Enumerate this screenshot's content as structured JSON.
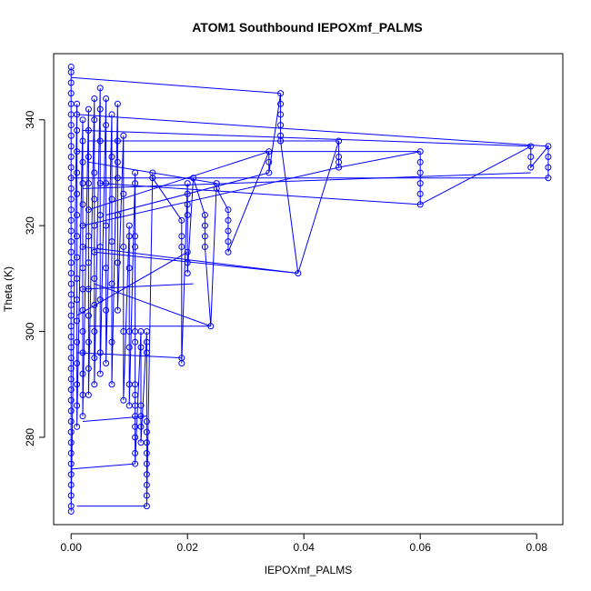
{
  "chart_data": {
    "type": "scatter",
    "title": "ATOM1 Southbound IEPOXmf_PALMS",
    "xlabel": "IEPOXmf_PALMS",
    "ylabel": "Theta (K)",
    "xlim": [
      -0.003,
      0.0845
    ],
    "ylim": [
      263.5,
      352.5
    ],
    "x_ticks": [
      0.0,
      0.02,
      0.04,
      0.06,
      0.08
    ],
    "x_tick_labels": [
      "0.00",
      "0.02",
      "0.04",
      "0.06",
      "0.08"
    ],
    "y_ticks": [
      280,
      300,
      320,
      340
    ],
    "y_tick_labels": [
      "280",
      "300",
      "320",
      "340"
    ],
    "marker": "open-circle",
    "series_color": "#0000ff",
    "grid": false,
    "legend": "none",
    "connected_in_order": true,
    "series": [
      {
        "points": [
          [
            0.0,
            350
          ],
          [
            0.0,
            349
          ],
          [
            0.0,
            347
          ],
          [
            0.0,
            345
          ],
          [
            0.0,
            343
          ],
          [
            0.0,
            341
          ],
          [
            0.0,
            339
          ],
          [
            0.0,
            337
          ],
          [
            0.0,
            335
          ],
          [
            0.0,
            333
          ],
          [
            0.0,
            331
          ],
          [
            0.0,
            329
          ],
          [
            0.0,
            327
          ],
          [
            0.0,
            325
          ],
          [
            0.0,
            323
          ],
          [
            0.0,
            321
          ],
          [
            0.0,
            319
          ],
          [
            0.0,
            317
          ],
          [
            0.0,
            315
          ],
          [
            0.0,
            313
          ],
          [
            0.0,
            311
          ],
          [
            0.0,
            309
          ],
          [
            0.0,
            307
          ],
          [
            0.0,
            305
          ],
          [
            0.0,
            303
          ],
          [
            0.0,
            301
          ],
          [
            0.0,
            299
          ],
          [
            0.0,
            297
          ],
          [
            0.0,
            295
          ],
          [
            0.0,
            293
          ],
          [
            0.0,
            291
          ],
          [
            0.0,
            289
          ],
          [
            0.0,
            287
          ],
          [
            0.0,
            285
          ],
          [
            0.0,
            283
          ],
          [
            0.0,
            281
          ],
          [
            0.0,
            279
          ],
          [
            0.0,
            277
          ],
          [
            0.0,
            275
          ],
          [
            0.0,
            273
          ],
          [
            0.0,
            271
          ],
          [
            0.0,
            269
          ],
          [
            0.0,
            267
          ],
          [
            0.0,
            266
          ],
          [
            0.001,
            343
          ],
          [
            0.001,
            341
          ],
          [
            0.001,
            338
          ],
          [
            0.001,
            334
          ],
          [
            0.001,
            330
          ],
          [
            0.001,
            326
          ],
          [
            0.001,
            322
          ],
          [
            0.001,
            318
          ],
          [
            0.001,
            314
          ],
          [
            0.001,
            310
          ],
          [
            0.001,
            306
          ],
          [
            0.001,
            302
          ],
          [
            0.001,
            298
          ],
          [
            0.001,
            294
          ],
          [
            0.001,
            290
          ],
          [
            0.001,
            286
          ],
          [
            0.001,
            282
          ],
          [
            0.002,
            340
          ],
          [
            0.002,
            336
          ],
          [
            0.002,
            332
          ],
          [
            0.002,
            328
          ],
          [
            0.002,
            324
          ],
          [
            0.002,
            320
          ],
          [
            0.002,
            316
          ],
          [
            0.002,
            312
          ],
          [
            0.002,
            308
          ],
          [
            0.002,
            304
          ],
          [
            0.002,
            300
          ],
          [
            0.002,
            296
          ],
          [
            0.002,
            292
          ],
          [
            0.002,
            288
          ],
          [
            0.002,
            284
          ],
          [
            0.003,
            342
          ],
          [
            0.003,
            338
          ],
          [
            0.003,
            333
          ],
          [
            0.003,
            328
          ],
          [
            0.003,
            323
          ],
          [
            0.003,
            318
          ],
          [
            0.003,
            313
          ],
          [
            0.003,
            308
          ],
          [
            0.003,
            303
          ],
          [
            0.003,
            298
          ],
          [
            0.003,
            293
          ],
          [
            0.003,
            288
          ],
          [
            0.004,
            344
          ],
          [
            0.004,
            340
          ],
          [
            0.004,
            330
          ],
          [
            0.004,
            325
          ],
          [
            0.004,
            320
          ],
          [
            0.004,
            315
          ],
          [
            0.004,
            310
          ],
          [
            0.004,
            305
          ],
          [
            0.004,
            300
          ],
          [
            0.004,
            295
          ],
          [
            0.004,
            290
          ],
          [
            0.005,
            346
          ],
          [
            0.005,
            342
          ],
          [
            0.005,
            336
          ],
          [
            0.005,
            328
          ],
          [
            0.005,
            322
          ],
          [
            0.005,
            316
          ],
          [
            0.005,
            306
          ],
          [
            0.005,
            296
          ],
          [
            0.005,
            292
          ],
          [
            0.006,
            344
          ],
          [
            0.006,
            339
          ],
          [
            0.006,
            328
          ],
          [
            0.006,
            320
          ],
          [
            0.006,
            312
          ],
          [
            0.006,
            304
          ],
          [
            0.006,
            294
          ],
          [
            0.007,
            341
          ],
          [
            0.007,
            333
          ],
          [
            0.007,
            325
          ],
          [
            0.007,
            317
          ],
          [
            0.007,
            309
          ],
          [
            0.007,
            298
          ],
          [
            0.007,
            290
          ],
          [
            0.008,
            343
          ],
          [
            0.008,
            336
          ],
          [
            0.008,
            332
          ],
          [
            0.008,
            329
          ],
          [
            0.008,
            322
          ],
          [
            0.008,
            313
          ],
          [
            0.008,
            304
          ],
          [
            0.009,
            337
          ],
          [
            0.009,
            326
          ],
          [
            0.009,
            316
          ],
          [
            0.009,
            300
          ],
          [
            0.009,
            287
          ],
          [
            0.01,
            320
          ],
          [
            0.01,
            318
          ],
          [
            0.01,
            312
          ],
          [
            0.01,
            300
          ],
          [
            0.01,
            297
          ],
          [
            0.01,
            290
          ],
          [
            0.01,
            286
          ],
          [
            0.011,
            330
          ],
          [
            0.011,
            328
          ],
          [
            0.011,
            318
          ],
          [
            0.011,
            316
          ],
          [
            0.011,
            300
          ],
          [
            0.011,
            298
          ],
          [
            0.011,
            290
          ],
          [
            0.011,
            288
          ],
          [
            0.011,
            286
          ],
          [
            0.011,
            284
          ],
          [
            0.011,
            282
          ],
          [
            0.011,
            280
          ],
          [
            0.011,
            277
          ],
          [
            0.011,
            275
          ],
          [
            0.012,
            300
          ],
          [
            0.012,
            297
          ],
          [
            0.012,
            286
          ],
          [
            0.012,
            284
          ],
          [
            0.012,
            282
          ],
          [
            0.012,
            279
          ],
          [
            0.013,
            300
          ],
          [
            0.013,
            298
          ],
          [
            0.013,
            296
          ],
          [
            0.013,
            283
          ],
          [
            0.013,
            281
          ],
          [
            0.013,
            279
          ],
          [
            0.013,
            277
          ],
          [
            0.013,
            275
          ],
          [
            0.013,
            273
          ],
          [
            0.013,
            271
          ],
          [
            0.013,
            269
          ],
          [
            0.013,
            267
          ],
          [
            0.014,
            330
          ],
          [
            0.014,
            329
          ],
          [
            0.019,
            321
          ],
          [
            0.019,
            318
          ],
          [
            0.019,
            316
          ],
          [
            0.019,
            295
          ],
          [
            0.019,
            294
          ],
          [
            0.02,
            328
          ],
          [
            0.02,
            326
          ],
          [
            0.02,
            324
          ],
          [
            0.02,
            322
          ],
          [
            0.02,
            315
          ],
          [
            0.02,
            313
          ],
          [
            0.02,
            311
          ],
          [
            0.021,
            329
          ],
          [
            0.023,
            322
          ],
          [
            0.023,
            320
          ],
          [
            0.023,
            318
          ],
          [
            0.023,
            316
          ],
          [
            0.024,
            301
          ],
          [
            0.025,
            328
          ],
          [
            0.025,
            327
          ],
          [
            0.027,
            323
          ],
          [
            0.027,
            321
          ],
          [
            0.027,
            319
          ],
          [
            0.027,
            317
          ],
          [
            0.027,
            315
          ],
          [
            0.034,
            334
          ],
          [
            0.034,
            332
          ],
          [
            0.034,
            330
          ],
          [
            0.036,
            345
          ],
          [
            0.036,
            343
          ],
          [
            0.036,
            341
          ],
          [
            0.036,
            339
          ],
          [
            0.036,
            337
          ],
          [
            0.036,
            336
          ],
          [
            0.039,
            311
          ],
          [
            0.046,
            336
          ],
          [
            0.046,
            333
          ],
          [
            0.046,
            332
          ],
          [
            0.046,
            331
          ],
          [
            0.06,
            334
          ],
          [
            0.06,
            332
          ],
          [
            0.06,
            330
          ],
          [
            0.06,
            328
          ],
          [
            0.06,
            326
          ],
          [
            0.06,
            324
          ],
          [
            0.079,
            335
          ],
          [
            0.079,
            333
          ],
          [
            0.079,
            331
          ],
          [
            0.082,
            335
          ],
          [
            0.082,
            333
          ],
          [
            0.082,
            331
          ],
          [
            0.082,
            329
          ]
        ],
        "connector_segments": [
          [
            [
              0.0,
              348
            ],
            [
              0.036,
              345
            ]
          ],
          [
            [
              0.001,
              341
            ],
            [
              0.082,
              335
            ]
          ],
          [
            [
              0.002,
              338
            ],
            [
              0.079,
              335
            ]
          ],
          [
            [
              0.003,
              336
            ],
            [
              0.046,
              336
            ]
          ],
          [
            [
              0.001,
              334
            ],
            [
              0.06,
              334
            ]
          ],
          [
            [
              0.0,
              329
            ],
            [
              0.082,
              329
            ]
          ],
          [
            [
              0.002,
              327
            ],
            [
              0.079,
              330
            ]
          ],
          [
            [
              0.003,
              323
            ],
            [
              0.034,
              334
            ]
          ],
          [
            [
              0.002,
              320
            ],
            [
              0.046,
              331
            ]
          ],
          [
            [
              0.004,
              315
            ],
            [
              0.039,
              311
            ]
          ],
          [
            [
              0.002,
              308
            ],
            [
              0.021,
              309
            ]
          ],
          [
            [
              0.003,
              301
            ],
            [
              0.024,
              301
            ]
          ],
          [
            [
              0.001,
              296
            ],
            [
              0.019,
              295
            ]
          ],
          [
            [
              0.002,
              283
            ],
            [
              0.013,
              284
            ]
          ],
          [
            [
              0.0,
              274
            ],
            [
              0.011,
              275
            ]
          ],
          [
            [
              0.001,
              267
            ],
            [
              0.013,
              267
            ]
          ],
          [
            [
              0.005,
              328
            ],
            [
              0.06,
              324
            ]
          ],
          [
            [
              0.006,
              322
            ],
            [
              0.034,
              330
            ]
          ],
          [
            [
              0.004,
              309
            ],
            [
              0.024,
              301
            ]
          ],
          [
            [
              0.003,
              332
            ],
            [
              0.025,
              328
            ]
          ],
          [
            [
              0.002,
              316
            ],
            [
              0.039,
              311
            ]
          ],
          [
            [
              0.001,
              303
            ],
            [
              0.02,
              315
            ]
          ]
        ]
      }
    ]
  }
}
